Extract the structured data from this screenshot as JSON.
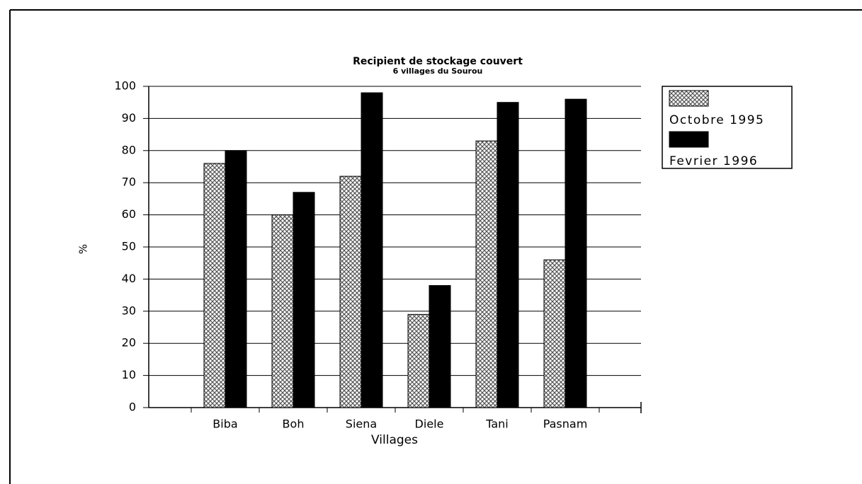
{
  "chart_data": {
    "type": "bar",
    "title": "Recipient de stockage couvert",
    "subtitle": "6 villages du Sourou",
    "xlabel": "Villages",
    "ylabel": "%",
    "categories": [
      "Biba",
      "Boh",
      "Siena",
      "Diele",
      "Tani",
      "Pasnam"
    ],
    "series": [
      {
        "name": "Octobre 1995",
        "color": "#555555",
        "values": [
          76,
          60,
          72,
          29,
          83,
          46
        ]
      },
      {
        "name": "Fevrier 1996",
        "color": "#000000",
        "values": [
          80,
          67,
          98,
          38,
          95,
          96
        ]
      }
    ],
    "ylim": [
      0,
      100
    ],
    "yticks": [
      0,
      10,
      20,
      30,
      40,
      50,
      60,
      70,
      80,
      90,
      100
    ],
    "grid": true,
    "legend": "right"
  }
}
